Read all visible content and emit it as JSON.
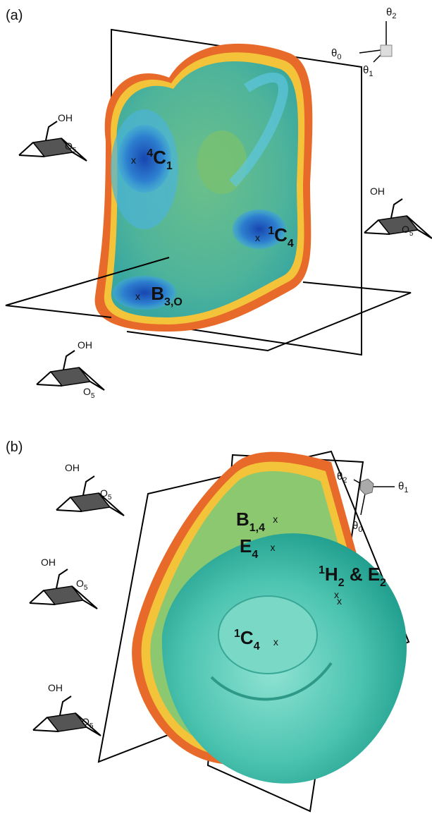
{
  "panels": [
    {
      "label": "(a)",
      "axes": [
        {
          "symbol": "θ",
          "sub": "2"
        },
        {
          "symbol": "θ",
          "sub": "0"
        },
        {
          "symbol": "θ",
          "sub": "1"
        }
      ],
      "conformations": [
        {
          "sup": "4",
          "base": "C",
          "sub": "1",
          "marker": "x"
        },
        {
          "sup": "1",
          "base": "C",
          "sub": "4",
          "marker": "x"
        },
        {
          "base": "B",
          "sub": "3,O",
          "marker": "x"
        }
      ],
      "structures": [
        {
          "hydroxyl": "OH",
          "ring_oxygen": "O",
          "ring_oxygen_sub": "5"
        },
        {
          "hydroxyl": "OH",
          "ring_oxygen": "O",
          "ring_oxygen_sub": "5"
        },
        {
          "hydroxyl": "OH",
          "ring_oxygen": "O",
          "ring_oxygen_sub": "5"
        }
      ]
    },
    {
      "label": "(b)",
      "axes": [
        {
          "symbol": "θ",
          "sub": "2"
        },
        {
          "symbol": "θ",
          "sub": "1"
        },
        {
          "symbol": "θ",
          "sub": "0"
        }
      ],
      "conformations": [
        {
          "base": "B",
          "sub": "1,4",
          "marker": "x"
        },
        {
          "base": "E",
          "sub": "4",
          "marker": "x"
        },
        {
          "sup": "1",
          "base": "H",
          "sub": "2",
          "joiner": " & ",
          "base2": "E",
          "sub2": "2",
          "marker": "x"
        },
        {
          "sup": "1",
          "base": "C",
          "sub": "4",
          "marker": "x"
        }
      ],
      "structures": [
        {
          "hydroxyl": "OH",
          "ring_oxygen": "O",
          "ring_oxygen_sub": "5"
        },
        {
          "hydroxyl": "OH",
          "ring_oxygen": "O",
          "ring_oxygen_sub": "5"
        },
        {
          "hydroxyl": "OH",
          "ring_oxygen": "O",
          "ring_oxygen_sub": "5"
        }
      ]
    }
  ]
}
